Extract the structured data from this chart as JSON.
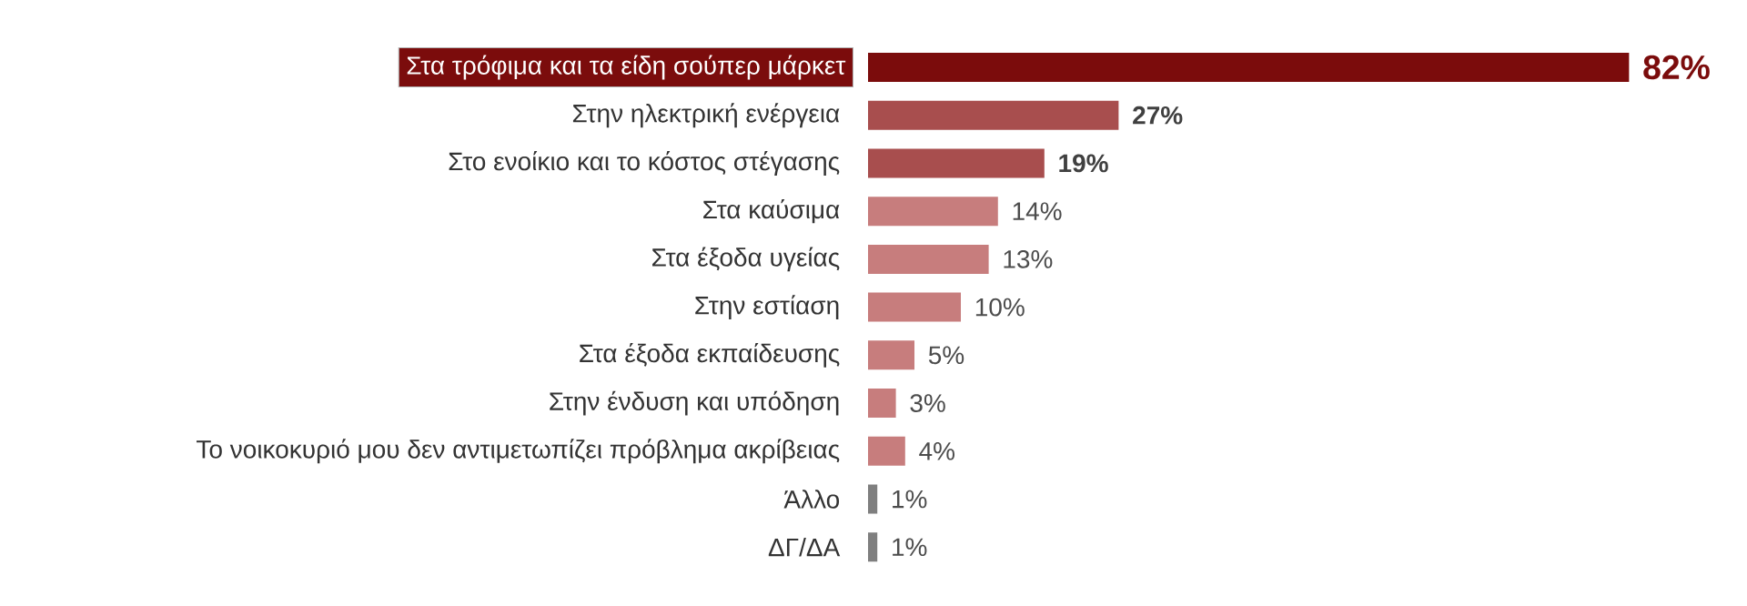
{
  "chart_data": {
    "type": "bar",
    "orientation": "horizontal",
    "categories": [
      "Στα τρόφιμα και τα είδη σούπερ μάρκετ",
      "Στην ηλεκτρική ενέργεια",
      "Στο ενοίκιο και το κόστος στέγασης",
      "Στα καύσιμα",
      "Στα έξοδα υγείας",
      "Στην εστίαση",
      "Στα έξοδα εκπαίδευσης",
      "Στην ένδυση και υπόδηση",
      "Το νοικοκυριό μου δεν αντιμετωπίζει πρόβλημα ακρίβειας",
      "Άλλο",
      "ΔΓ/ΔΑ"
    ],
    "values": [
      82,
      27,
      19,
      14,
      13,
      10,
      5,
      3,
      4,
      1,
      1
    ],
    "value_labels": [
      "82%",
      "27%",
      "19%",
      "14%",
      "13%",
      "10%",
      "5%",
      "3%",
      "4%",
      "1%",
      "1%"
    ],
    "colors": [
      "#7b0c0c",
      "#a84e4e",
      "#a84e4e",
      "#c77d7d",
      "#c77d7d",
      "#c77d7d",
      "#c77d7d",
      "#c77d7d",
      "#c77d7d",
      "#7f7f7f",
      "#7f7f7f"
    ]
  }
}
